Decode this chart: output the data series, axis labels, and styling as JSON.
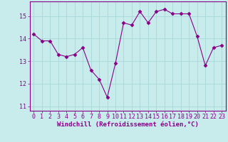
{
  "x": [
    0,
    1,
    2,
    3,
    4,
    5,
    6,
    7,
    8,
    9,
    10,
    11,
    12,
    13,
    14,
    15,
    16,
    17,
    18,
    19,
    20,
    21,
    22,
    23
  ],
  "y": [
    14.2,
    13.9,
    13.9,
    13.3,
    13.2,
    13.3,
    13.6,
    12.6,
    12.2,
    11.4,
    12.9,
    14.7,
    14.6,
    15.2,
    14.7,
    15.2,
    15.3,
    15.1,
    15.1,
    15.1,
    14.1,
    12.8,
    13.6,
    13.7
  ],
  "line_color": "#880088",
  "marker": "D",
  "marker_size": 2.5,
  "bg_color": "#c8ecec",
  "grid_color": "#a8d8d8",
  "xlabel": "Windchill (Refroidissement éolien,°C)",
  "ylim": [
    10.8,
    15.65
  ],
  "yticks": [
    11,
    12,
    13,
    14,
    15
  ],
  "xlim": [
    -0.5,
    23.5
  ],
  "xticks": [
    0,
    1,
    2,
    3,
    4,
    5,
    6,
    7,
    8,
    9,
    10,
    11,
    12,
    13,
    14,
    15,
    16,
    17,
    18,
    19,
    20,
    21,
    22,
    23
  ],
  "xlabel_color": "#880088",
  "xlabel_fontsize": 6.5,
  "tick_fontsize": 6.0,
  "tick_color": "#880088",
  "axis_color": "#880088",
  "spine_color": "#880088"
}
